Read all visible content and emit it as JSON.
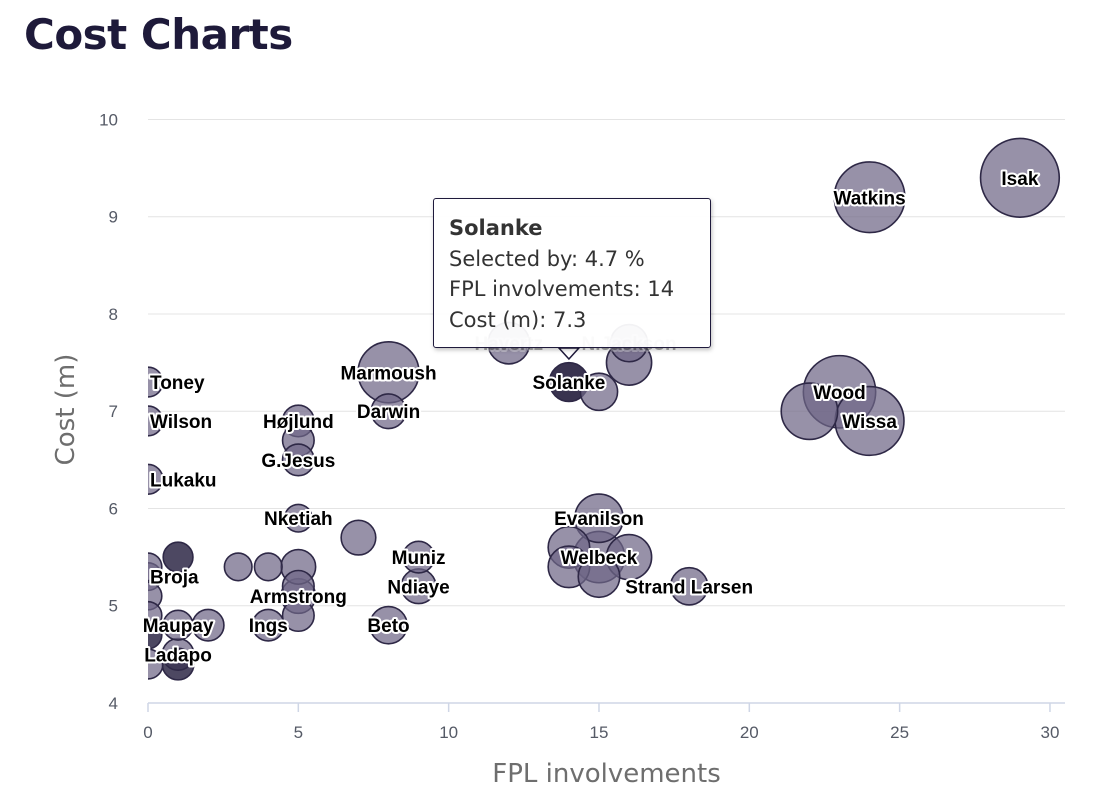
{
  "page": {
    "title": "Cost Charts"
  },
  "tooltip": {
    "name": "Solanke",
    "selected_label": "Selected by:",
    "selected_value": "4.7 %",
    "involvements_label": "FPL involvements:",
    "involvements_value": "14",
    "cost_label": "Cost (m):",
    "cost_value": "7.3"
  },
  "colors": {
    "bubble": "#6f6786",
    "bubble_dark": "#2e2846",
    "title": "#1e1a3a",
    "tooltip_border": "#1f1a3c"
  },
  "chart_data": {
    "type": "bubble",
    "title": "Cost Charts",
    "xlabel": "FPL involvements",
    "ylabel": "Cost (m)",
    "xlim": [
      0,
      30.5
    ],
    "ylim": [
      4,
      10.2
    ],
    "xticks": [
      0,
      5,
      10,
      15,
      20,
      25,
      30
    ],
    "yticks": [
      4,
      5,
      6,
      7,
      8,
      9,
      10
    ],
    "grid": true,
    "size_meaning": "Selected by (%)",
    "points": [
      {
        "name": "Isak",
        "x": 29,
        "y": 9.4,
        "selected": 40,
        "labeled": true
      },
      {
        "name": "Watkins",
        "x": 24,
        "y": 9.2,
        "selected": 30,
        "labeled": true
      },
      {
        "name": "Wood",
        "x": 23,
        "y": 7.2,
        "selected": 32,
        "labeled": true
      },
      {
        "name": "Wissa",
        "x": 24,
        "y": 6.9,
        "selected": 28,
        "labeled": true
      },
      {
        "name": "",
        "x": 22,
        "y": 7.0,
        "selected": 16,
        "labeled": false
      },
      {
        "name": "Havertz",
        "x": 12,
        "y": 7.7,
        "selected": 6,
        "labeled": true
      },
      {
        "name": "N.Jackson",
        "x": 16,
        "y": 7.7,
        "selected": 4,
        "labeled": true
      },
      {
        "name": "",
        "x": 16,
        "y": 7.5,
        "selected": 8,
        "labeled": false
      },
      {
        "name": "",
        "x": 15,
        "y": 7.2,
        "selected": 4,
        "labeled": false
      },
      {
        "name": "Solanke",
        "x": 14,
        "y": 7.3,
        "selected": 4.7,
        "labeled": true,
        "highlight": true
      },
      {
        "name": "Marmoush",
        "x": 8,
        "y": 7.4,
        "selected": 20,
        "labeled": true
      },
      {
        "name": "Darwin",
        "x": 8,
        "y": 7.0,
        "selected": 3,
        "labeled": true
      },
      {
        "name": "Højlund",
        "x": 5,
        "y": 6.9,
        "selected": 2,
        "labeled": true
      },
      {
        "name": "",
        "x": 5,
        "y": 6.7,
        "selected": 2,
        "labeled": false
      },
      {
        "name": "G.Jesus",
        "x": 5,
        "y": 6.5,
        "selected": 2,
        "labeled": true
      },
      {
        "name": "Toney",
        "x": 0,
        "y": 7.3,
        "selected": 1.5,
        "labeled": true
      },
      {
        "name": "Wilson",
        "x": 0,
        "y": 6.9,
        "selected": 1.5,
        "labeled": true
      },
      {
        "name": "Lukaku",
        "x": 0,
        "y": 6.3,
        "selected": 1.5,
        "labeled": true
      },
      {
        "name": "Nketiah",
        "x": 5,
        "y": 5.9,
        "selected": 1,
        "labeled": true
      },
      {
        "name": "",
        "x": 7,
        "y": 5.7,
        "selected": 3,
        "labeled": false
      },
      {
        "name": "Evanilson",
        "x": 15,
        "y": 5.9,
        "selected": 10,
        "labeled": true
      },
      {
        "name": "",
        "x": 14,
        "y": 5.6,
        "selected": 6,
        "labeled": false
      },
      {
        "name": "Welbeck",
        "x": 15,
        "y": 5.5,
        "selected": 12,
        "labeled": true
      },
      {
        "name": "",
        "x": 16,
        "y": 5.5,
        "selected": 8,
        "labeled": false
      },
      {
        "name": "",
        "x": 14,
        "y": 5.4,
        "selected": 6,
        "labeled": false
      },
      {
        "name": "",
        "x": 15,
        "y": 5.3,
        "selected": 6,
        "labeled": false
      },
      {
        "name": "Strand Larsen",
        "x": 18,
        "y": 5.2,
        "selected": 4,
        "labeled": true
      },
      {
        "name": "Muniz",
        "x": 9,
        "y": 5.5,
        "selected": 2,
        "labeled": true
      },
      {
        "name": "Ndiaye",
        "x": 9,
        "y": 5.2,
        "selected": 3,
        "labeled": true
      },
      {
        "name": "Beto",
        "x": 8,
        "y": 4.8,
        "selected": 4,
        "labeled": true
      },
      {
        "name": "Armstrong",
        "x": 5,
        "y": 5.1,
        "selected": 3,
        "labeled": true
      },
      {
        "name": "",
        "x": 5,
        "y": 5.4,
        "selected": 3,
        "labeled": false
      },
      {
        "name": "",
        "x": 5,
        "y": 5.2,
        "selected": 2,
        "labeled": false
      },
      {
        "name": "",
        "x": 5,
        "y": 4.9,
        "selected": 2,
        "labeled": false
      },
      {
        "name": "Ings",
        "x": 4,
        "y": 4.8,
        "selected": 2,
        "labeled": true
      },
      {
        "name": "",
        "x": 4,
        "y": 5.4,
        "selected": 1,
        "labeled": false
      },
      {
        "name": "",
        "x": 3,
        "y": 5.4,
        "selected": 1,
        "labeled": false
      },
      {
        "name": "",
        "x": 1,
        "y": 5.5,
        "selected": 1.5,
        "labeled": false,
        "dark": true
      },
      {
        "name": "Broja",
        "x": 0,
        "y": 5.3,
        "selected": 1,
        "labeled": true
      },
      {
        "name": "",
        "x": 0,
        "y": 5.4,
        "selected": 1,
        "labeled": false
      },
      {
        "name": "",
        "x": 0,
        "y": 5.1,
        "selected": 1,
        "labeled": false
      },
      {
        "name": "Maupay",
        "x": 1,
        "y": 4.8,
        "selected": 1.5,
        "labeled": true
      },
      {
        "name": "",
        "x": 2,
        "y": 4.8,
        "selected": 2,
        "labeled": false
      },
      {
        "name": "",
        "x": 0,
        "y": 4.9,
        "selected": 1,
        "labeled": false
      },
      {
        "name": "",
        "x": 0,
        "y": 4.7,
        "selected": 1,
        "labeled": false,
        "dark": true
      },
      {
        "name": "Ladapo",
        "x": 1,
        "y": 4.5,
        "selected": 2,
        "labeled": true
      },
      {
        "name": "",
        "x": 1,
        "y": 4.4,
        "selected": 2,
        "labeled": false,
        "dark": true
      },
      {
        "name": "",
        "x": 0,
        "y": 4.4,
        "selected": 1.5,
        "labeled": false
      }
    ]
  }
}
